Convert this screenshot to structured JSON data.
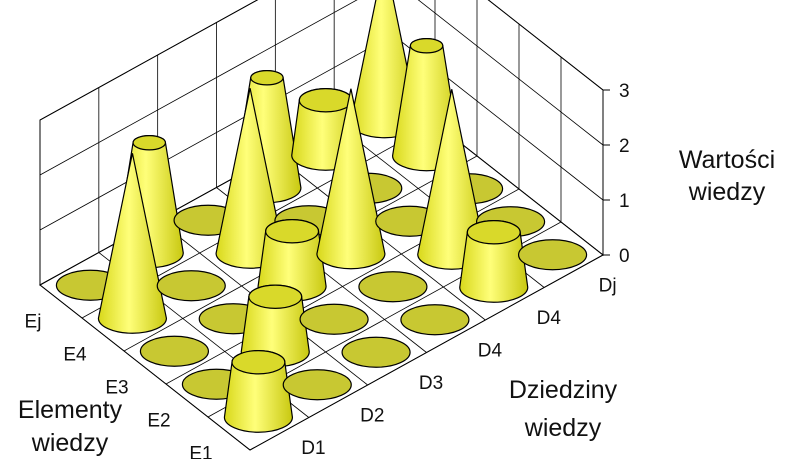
{
  "chart_data": {
    "type": "3d-cone",
    "z_ticks": [
      "0",
      "1",
      "2",
      "3"
    ],
    "zlim": [
      0,
      3
    ],
    "zlabel": [
      "Wartości",
      "wiedzy"
    ],
    "xlabel": [
      "Dziedziny",
      "wiedzy"
    ],
    "ylabel": [
      "Elementy",
      "wiedzy"
    ],
    "x_categories": [
      "D1",
      "D2",
      "D3",
      "D4",
      "D4",
      "Dj"
    ],
    "y_categories": [
      "E1",
      "E2",
      "E3",
      "E4",
      "Ej"
    ],
    "values": [
      [
        1,
        0,
        0,
        0,
        1,
        0
      ],
      [
        0,
        1,
        0,
        0,
        3,
        0
      ],
      [
        0,
        0,
        1,
        3,
        0,
        0
      ],
      [
        3,
        0,
        3,
        0,
        0,
        2
      ],
      [
        0,
        2,
        0,
        2,
        1,
        3
      ]
    ],
    "series_color": "#f5f53a",
    "base_color": "#c8c832",
    "grid": true
  }
}
